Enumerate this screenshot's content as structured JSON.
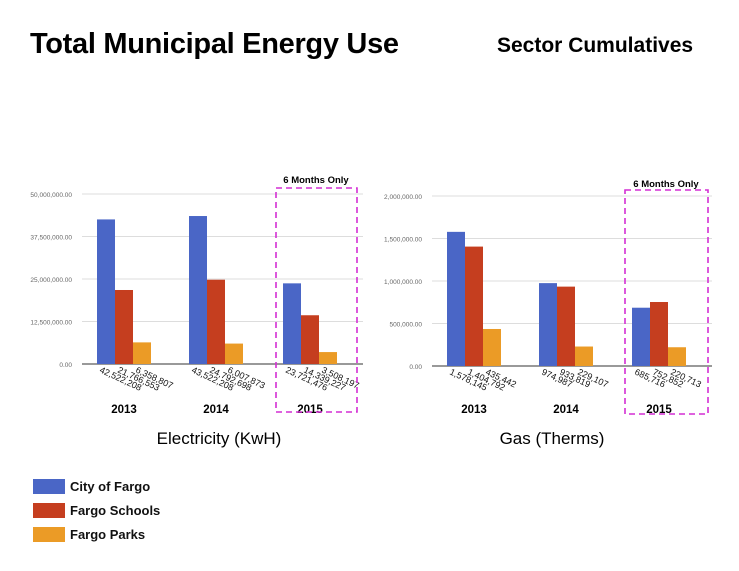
{
  "header": {
    "title": "Total Municipal Energy Use",
    "subtitle": "Sector Cumulatives"
  },
  "legend": [
    {
      "label": "City of Fargo",
      "color": "#4A66C6"
    },
    {
      "label": "Fargo Schools",
      "color": "#C53E1F"
    },
    {
      "label": "Fargo Parks",
      "color": "#EB9B26"
    }
  ],
  "chart_data": [
    {
      "type": "bar",
      "title": "Electricity (KwH)",
      "categories": [
        "2013",
        "2014",
        "2015"
      ],
      "series": [
        {
          "name": "City of Fargo",
          "values": [
            42522208,
            43522208,
            23721476
          ],
          "labels": [
            "42,522,208",
            "43,522,208",
            "23,721,476"
          ]
        },
        {
          "name": "Fargo Schools",
          "values": [
            21766553,
            24792698,
            14339227
          ],
          "labels": [
            "21,766,553",
            "24,792,698",
            "14,339,227"
          ]
        },
        {
          "name": "Fargo Parks",
          "values": [
            6358807,
            6007873,
            3508197
          ],
          "labels": [
            "6,358,807",
            "6,007,873",
            "3,508,197"
          ]
        }
      ],
      "ylim": [
        0,
        50000000
      ],
      "yticks": [
        "0.00",
        "12,500,000.00",
        "25,000,000.00",
        "37,500,000.00",
        "50,000,000.00"
      ],
      "annotation": "6 Months Only",
      "annotation_category": "2015",
      "grid": true
    },
    {
      "type": "bar",
      "title": "Gas (Therms)",
      "categories": [
        "2013",
        "2014",
        "2015"
      ],
      "series": [
        {
          "name": "City of Fargo",
          "values": [
            1578145,
            974987,
            685716
          ],
          "labels": [
            "1,578,145",
            "974,987",
            "685,716"
          ]
        },
        {
          "name": "Fargo Schools",
          "values": [
            1404792,
            933819,
            752852
          ],
          "labels": [
            "1,404,792",
            "933,819",
            "752,852"
          ]
        },
        {
          "name": "Fargo Parks",
          "values": [
            435442,
            229107,
            220713
          ],
          "labels": [
            "435,442",
            "229,107",
            "220,713"
          ]
        }
      ],
      "ylim": [
        0,
        2000000
      ],
      "yticks": [
        "0.00",
        "500,000.00",
        "1,000,000.00",
        "1,500,000.00",
        "2,000,000.00"
      ],
      "annotation": "6 Months Only",
      "annotation_category": "2015",
      "grid": true
    }
  ]
}
